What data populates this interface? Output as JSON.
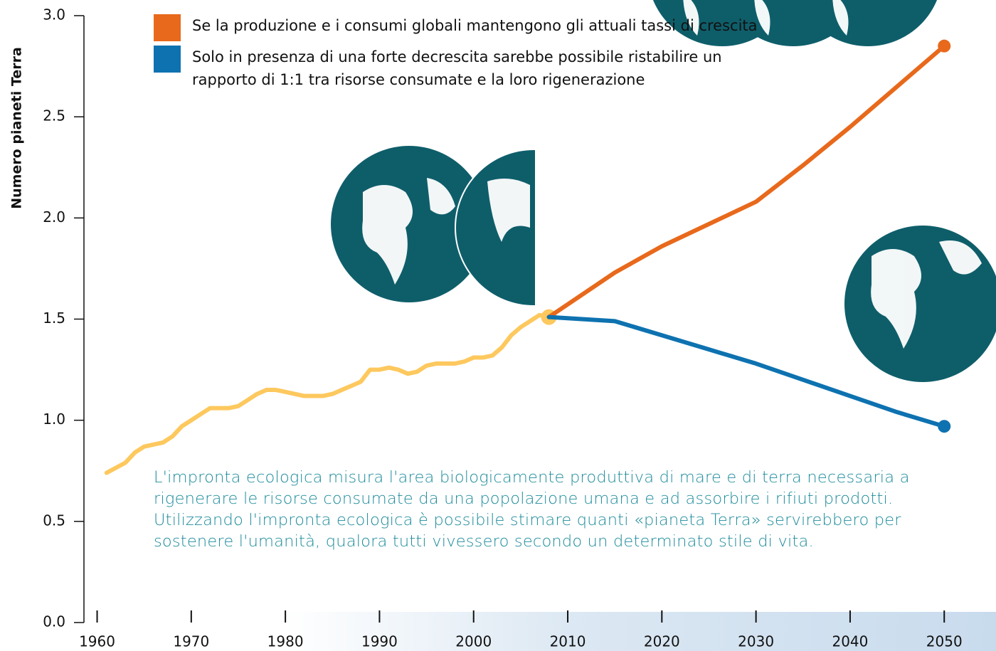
{
  "chart_data": {
    "type": "line",
    "ylabel": "Numero pianeti Terra",
    "annotation": "L'impronta ecologica misura l'area biologicamente produttiva di mare e di terra necessaria a rigenerare le risorse consumate da una popolazione umana e ad assorbire i rifiuti prodotti. Utilizzando l'impronta ecologica è possibile stimare quanti «pianeta Terra» servirebbero per sostenere l'umanità, qualora tutti vivessero secondo un determinato stile di vita.",
    "xlim": [
      1958.6,
      2055.5
    ],
    "xticks": [
      1960,
      1970,
      1980,
      1990,
      2000,
      2010,
      2020,
      2030,
      2040,
      2050
    ],
    "ylim": [
      0,
      3
    ],
    "yticks": [
      {
        "value": 0,
        "label": "0.0"
      },
      0.5,
      {
        "value": 1,
        "label": "1.0"
      },
      1.5,
      {
        "value": 2,
        "label": "2.0"
      },
      2.5,
      {
        "value": 3,
        "label": "3.0"
      }
    ],
    "series": [
      {
        "color": "#fdc85e",
        "x": [
          1961,
          1963,
          1964,
          1965,
          1966,
          1967,
          1968,
          1969,
          1970,
          1971,
          1972,
          1973,
          1974,
          1975,
          1976,
          1977,
          1978,
          1979,
          1980,
          1981,
          1982,
          1983,
          1984,
          1985,
          1986,
          1987,
          1988,
          1989,
          1990,
          1991,
          1992,
          1993,
          1994,
          1995,
          1996,
          1997,
          1998,
          1999,
          2000,
          2001,
          2002,
          2003,
          2004,
          2005,
          2006,
          2007,
          2008
        ],
        "values": [
          0.74,
          0.79,
          0.84,
          0.87,
          0.88,
          0.89,
          0.92,
          0.97,
          1.0,
          1.03,
          1.06,
          1.06,
          1.06,
          1.07,
          1.1,
          1.13,
          1.15,
          1.15,
          1.14,
          1.13,
          1.12,
          1.12,
          1.12,
          1.13,
          1.15,
          1.17,
          1.19,
          1.25,
          1.25,
          1.26,
          1.25,
          1.23,
          1.24,
          1.27,
          1.28,
          1.28,
          1.28,
          1.29,
          1.31,
          1.31,
          1.32,
          1.36,
          1.42,
          1.46,
          1.49,
          1.52,
          1.51
        ]
      },
      {
        "name": "Se la produzione e i consumi globali mantengono gli attuali tassi di crescita",
        "color": "#e8691c",
        "x": [
          2008,
          2015,
          2020,
          2025,
          2030,
          2035,
          2040,
          2045,
          2050
        ],
        "values": [
          1.51,
          1.73,
          1.86,
          1.97,
          2.08,
          2.26,
          2.45,
          2.65,
          2.85
        ]
      },
      {
        "name": "Solo in presenza di una forte decrescita sarebbe possibile ristabilire un rapporto di 1:1 tra risorse consumate e la loro rigenerazione",
        "color": "#0e72b0",
        "x": [
          2008,
          2015,
          2020,
          2025,
          2030,
          2035,
          2040,
          2045,
          2050
        ],
        "values": [
          1.51,
          1.49,
          1.42,
          1.35,
          1.28,
          1.2,
          1.12,
          1.04,
          0.97
        ]
      }
    ]
  }
}
